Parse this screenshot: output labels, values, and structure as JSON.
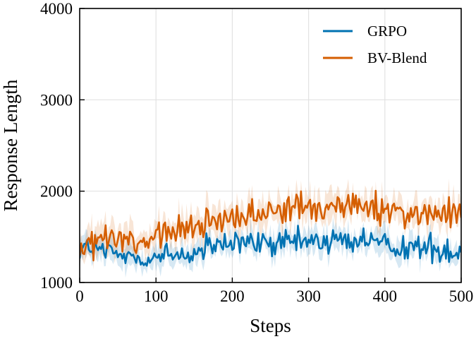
{
  "chart_data": {
    "type": "line",
    "title": "",
    "xlabel": "Steps",
    "ylabel": "Response Length",
    "xlim": [
      0,
      500
    ],
    "ylim": [
      1000,
      4000
    ],
    "xticks": [
      0,
      100,
      200,
      300,
      400,
      500
    ],
    "yticks": [
      1000,
      2000,
      3000,
      4000
    ],
    "xtick_labels": [
      "0",
      "100",
      "200",
      "300",
      "400",
      "500"
    ],
    "ytick_labels": [
      "1000",
      "2000",
      "3000",
      "4000"
    ],
    "grid": true,
    "legend_position": "top-right",
    "series": [
      {
        "name": "GRPO",
        "color": "#0072b2",
        "x": [
          0,
          10,
          20,
          30,
          40,
          50,
          60,
          70,
          80,
          90,
          100,
          110,
          120,
          130,
          140,
          150,
          160,
          170,
          180,
          190,
          200,
          210,
          220,
          230,
          240,
          250,
          260,
          270,
          280,
          290,
          300,
          310,
          320,
          330,
          340,
          350,
          360,
          370,
          380,
          390,
          400,
          410,
          420,
          430,
          440,
          450,
          460,
          470,
          480,
          490,
          500
        ],
        "values": [
          1400,
          1380,
          1360,
          1340,
          1320,
          1300,
          1290,
          1280,
          1260,
          1270,
          1280,
          1290,
          1290,
          1300,
          1310,
          1320,
          1340,
          1370,
          1400,
          1410,
          1420,
          1430,
          1430,
          1420,
          1420,
          1420,
          1430,
          1430,
          1430,
          1440,
          1450,
          1460,
          1460,
          1460,
          1460,
          1460,
          1460,
          1460,
          1450,
          1440,
          1420,
          1410,
          1400,
          1390,
          1380,
          1380,
          1370,
          1370,
          1360,
          1350,
          1320
        ]
      },
      {
        "name": "BV-Blend",
        "color": "#d55e00",
        "x": [
          0,
          10,
          20,
          30,
          40,
          50,
          60,
          70,
          80,
          90,
          100,
          110,
          120,
          130,
          140,
          150,
          160,
          170,
          180,
          190,
          200,
          210,
          220,
          230,
          240,
          250,
          260,
          270,
          280,
          290,
          300,
          310,
          320,
          330,
          340,
          350,
          360,
          370,
          380,
          390,
          400,
          410,
          420,
          430,
          440,
          450,
          460,
          470,
          480,
          490,
          500
        ],
        "values": [
          1350,
          1380,
          1450,
          1480,
          1480,
          1460,
          1440,
          1430,
          1420,
          1440,
          1470,
          1510,
          1540,
          1560,
          1580,
          1600,
          1640,
          1680,
          1700,
          1710,
          1720,
          1730,
          1740,
          1740,
          1750,
          1760,
          1780,
          1790,
          1790,
          1800,
          1810,
          1810,
          1800,
          1800,
          1820,
          1860,
          1840,
          1820,
          1820,
          1810,
          1790,
          1770,
          1770,
          1760,
          1750,
          1760,
          1770,
          1770,
          1760,
          1740,
          1720
        ]
      }
    ]
  }
}
